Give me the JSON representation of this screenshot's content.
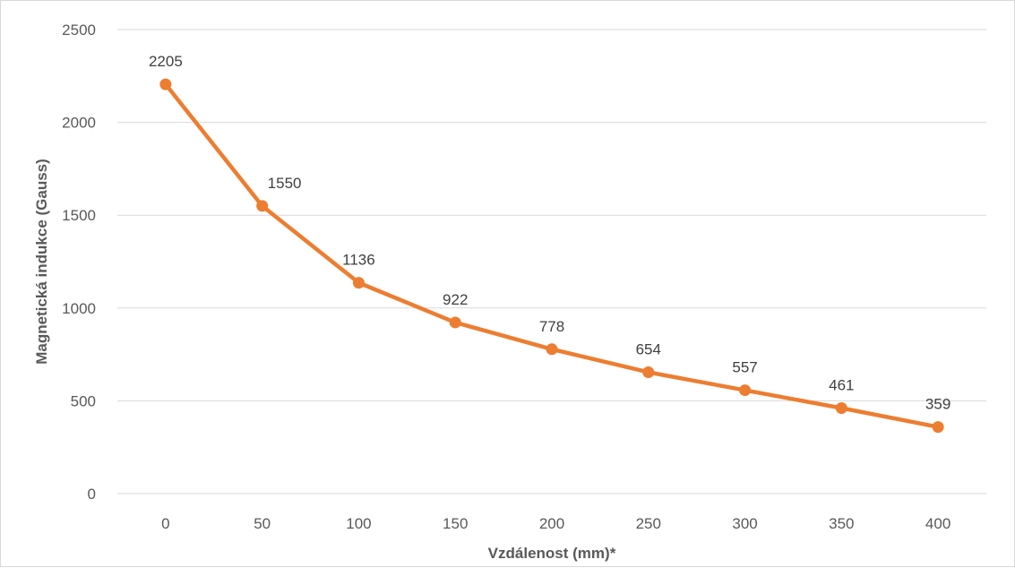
{
  "chart_data": {
    "type": "line",
    "title": "",
    "xlabel": "Vzdálenost (mm)*",
    "ylabel": "Magnetická indukce (Gauss)",
    "x": [
      0,
      50,
      100,
      150,
      200,
      250,
      300,
      350,
      400
    ],
    "x_tick_labels": [
      "0",
      "50",
      "100",
      "150",
      "200",
      "250",
      "300",
      "350",
      "400"
    ],
    "ylim": [
      0,
      2500
    ],
    "y_ticks": [
      0,
      500,
      1000,
      1500,
      2000,
      2500
    ],
    "y_tick_labels": [
      "0",
      "500",
      "1000",
      "1500",
      "2000",
      "2500"
    ],
    "series": [
      {
        "values": [
          2205,
          1550,
          1136,
          922,
          778,
          654,
          557,
          461,
          359
        ],
        "data_labels": [
          "2205",
          "1550",
          "1136",
          "922",
          "778",
          "654",
          "557",
          "461",
          "359"
        ],
        "color": "#ed7d31"
      }
    ],
    "grid": "horizontal",
    "legend": "none",
    "markers": "circle"
  },
  "colors": {
    "gridline": "#d9d9d9",
    "axis_line": "#d9d9d9",
    "series": "#ed7d31"
  }
}
